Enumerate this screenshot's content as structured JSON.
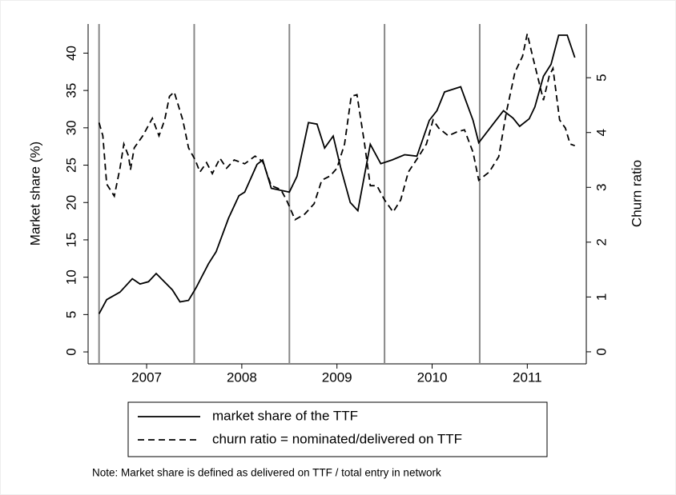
{
  "chart_data": {
    "type": "line",
    "note": "Note: Market share is defined as delivered on TTF / total entry in network",
    "ylabel": "Market share (%)",
    "y2label": "Churn ratio",
    "xlim": [
      2006.385,
      2011.62
    ],
    "xticks": [
      2007,
      2008,
      2009,
      2010,
      2011
    ],
    "xlines": [
      2006.5,
      2007.5,
      2008.5,
      2009.5,
      2010.5
    ],
    "ylim": [
      -1.6,
      43.9
    ],
    "yticks": [
      0,
      5,
      10,
      15,
      20,
      25,
      30,
      35,
      40
    ],
    "y2lim": [
      -0.22,
      5.98
    ],
    "y2ticks": [
      0,
      1,
      2,
      3,
      4,
      5
    ],
    "series": [
      {
        "name": "market share of the TTF",
        "color": "#000000",
        "dash": "solid",
        "x": [
          2006.5,
          2006.58,
          2006.72,
          2006.85,
          2006.93,
          2007.02,
          2007.1,
          2007.27,
          2007.35,
          2007.44,
          2007.52,
          2007.65,
          2007.73,
          2007.86,
          2007.97,
          2008.03,
          2008.16,
          2008.22,
          2008.31,
          2008.5,
          2008.58,
          2008.7,
          2008.79,
          2008.87,
          2008.96,
          2009.04,
          2009.14,
          2009.22,
          2009.35,
          2009.46,
          2009.58,
          2009.71,
          2009.84,
          2009.97,
          2010.05,
          2010.13,
          2010.3,
          2010.43,
          2010.49,
          2010.64,
          2010.75,
          2010.85,
          2010.92,
          2011.02,
          2011.08,
          2011.17,
          2011.25,
          2011.33,
          2011.42,
          2011.5
        ],
        "values": [
          5.1,
          7,
          8,
          9.8,
          9.1,
          9.4,
          10.5,
          8.3,
          6.7,
          6.9,
          8.6,
          11.8,
          13.4,
          17.9,
          20.9,
          21.4,
          25.1,
          25.7,
          21.9,
          21.4,
          23.5,
          30.7,
          30.5,
          27.3,
          28.9,
          24.6,
          20,
          18.9,
          27.8,
          25.2,
          25.7,
          26.4,
          26.2,
          31,
          32.3,
          34.8,
          35.5,
          31,
          28,
          30.5,
          32.3,
          31.3,
          30.2,
          31.2,
          32.8,
          36.9,
          38.5,
          42.4,
          42.4,
          39.4
        ]
      },
      {
        "name": "churn ratio = nominated/delivered on TTF",
        "color": "#000000",
        "dash": "dashed",
        "axis": "y2",
        "x": [
          2006.5,
          2006.54,
          2006.58,
          2006.66,
          2006.72,
          2006.76,
          2006.81,
          2006.83,
          2006.87,
          2006.96,
          2007.06,
          2007.13,
          2007.19,
          2007.24,
          2007.29,
          2007.38,
          2007.44,
          2007.51,
          2007.56,
          2007.63,
          2007.69,
          2007.77,
          2007.84,
          2007.92,
          2008.03,
          2008.14,
          2008.22,
          2008.31,
          2008.41,
          2008.47,
          2008.56,
          2008.66,
          2008.76,
          2008.84,
          2008.93,
          2009.0,
          2009.08,
          2009.15,
          2009.21,
          2009.29,
          2009.35,
          2009.42,
          2009.5,
          2009.59,
          2009.67,
          2009.75,
          2009.85,
          2009.94,
          2010.01,
          2010.07,
          2010.17,
          2010.26,
          2010.34,
          2010.43,
          2010.49,
          2010.6,
          2010.7,
          2010.78,
          2010.87,
          2010.95,
          2011.0,
          2011.06,
          2011.17,
          2011.23,
          2011.27,
          2011.34,
          2011.4,
          2011.45,
          2011.5
        ],
        "values": [
          4.18,
          3.94,
          3.06,
          2.84,
          3.35,
          3.79,
          3.57,
          3.32,
          3.72,
          3.94,
          4.26,
          3.94,
          4.23,
          4.66,
          4.74,
          4.23,
          3.72,
          3.5,
          3.28,
          3.45,
          3.25,
          3.53,
          3.35,
          3.5,
          3.43,
          3.57,
          3.47,
          3.03,
          2.96,
          2.77,
          2.41,
          2.51,
          2.7,
          3.13,
          3.21,
          3.35,
          3.79,
          4.66,
          4.69,
          3.79,
          3.03,
          3.03,
          2.77,
          2.55,
          2.77,
          3.28,
          3.54,
          3.79,
          4.23,
          4.08,
          3.94,
          4.01,
          4.05,
          3.64,
          3.13,
          3.28,
          3.56,
          4.37,
          5.1,
          5.39,
          5.8,
          5.36,
          4.59,
          5.03,
          5.17,
          4.23,
          4.08,
          3.79,
          3.76
        ]
      }
    ]
  }
}
